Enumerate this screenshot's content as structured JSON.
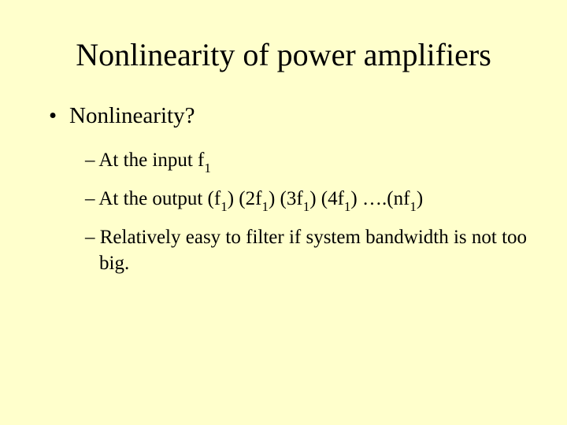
{
  "slide": {
    "background_color": "#ffffcc",
    "text_color": "#000000",
    "font_family": "Times New Roman",
    "title": {
      "text": "Nonlinearity of power amplifiers",
      "fontsize": 40
    },
    "bullets": {
      "l1": {
        "marker": "•",
        "text": "Nonlinearity?",
        "fontsize": 29
      },
      "l2_marker": "–",
      "l2_fontsize": 25,
      "sub_input_pre": "At the input f",
      "sub_input_sub": "1",
      "sub_output_pre": "At the output (f",
      "s1": "1",
      "p1": ") (2f",
      "s2": "1",
      "p2": ") (3f",
      "s3": "1",
      "p3": ") (4f",
      "s4": "1",
      "p4": ") ….(nf",
      "s5": "1",
      "p5": ")",
      "sub_filter": "Relatively easy to filter if system bandwidth is not too big."
    }
  }
}
